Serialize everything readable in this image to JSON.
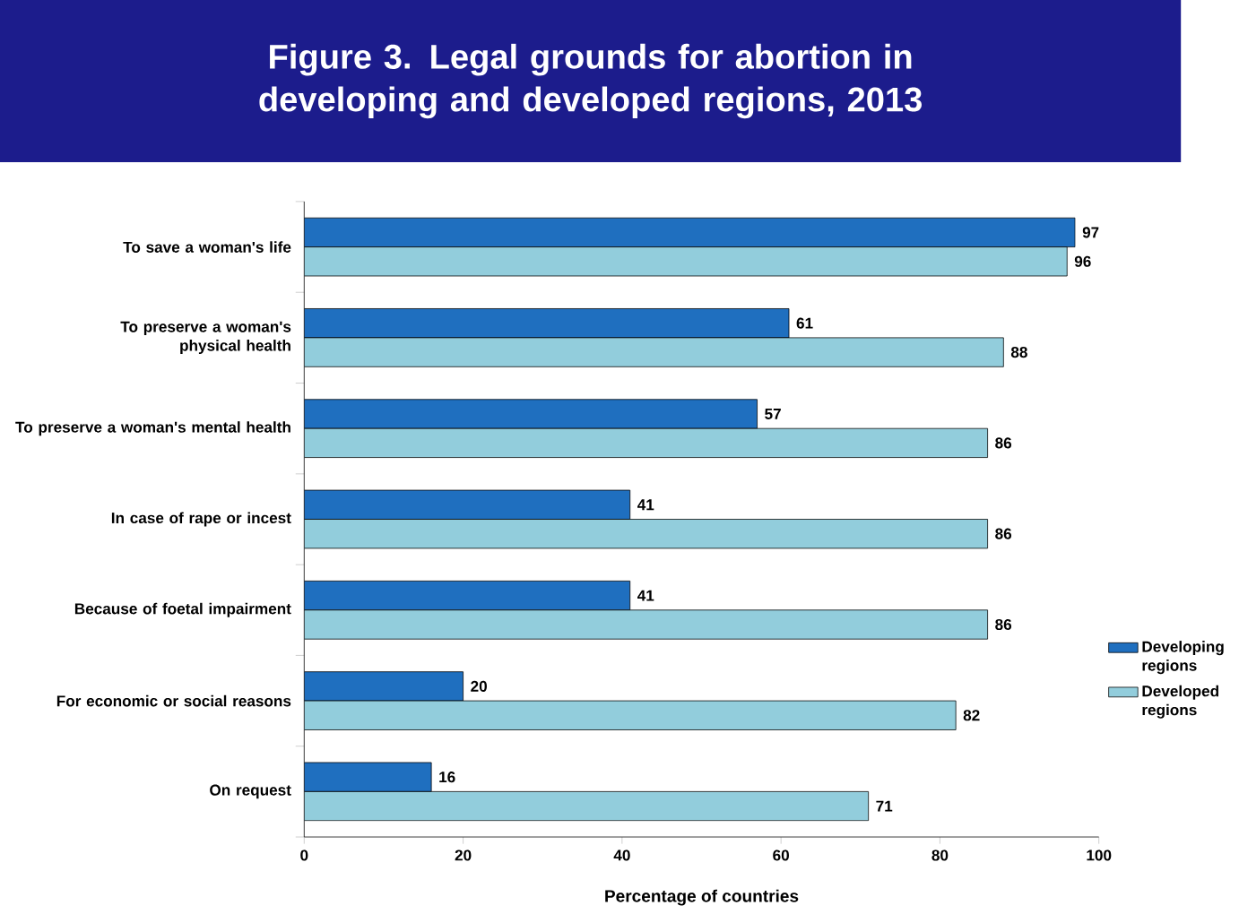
{
  "chart_data": {
    "type": "bar",
    "orientation": "horizontal",
    "title": "Figure 3. Legal grounds for abortion in developing and developed regions, 2013",
    "xlabel": "Percentage of countries",
    "categories": [
      "To save a woman's life",
      "To preserve a woman's physical health",
      "To preserve a woman's mental health",
      "In case of rape or incest",
      "Because of foetal impairment",
      "For economic or social reasons",
      "On request"
    ],
    "series": [
      {
        "name": "Developing regions",
        "color": "#1f6fbf",
        "values": [
          97,
          61,
          57,
          41,
          41,
          20,
          16
        ]
      },
      {
        "name": "Developed regions",
        "color": "#92cddc",
        "values": [
          96,
          88,
          86,
          86,
          86,
          82,
          71
        ]
      }
    ],
    "xlim": [
      0,
      100
    ],
    "xticks": [
      0,
      20,
      40,
      60,
      80,
      100
    ],
    "data_labels": true,
    "legend": "right",
    "grid": false
  }
}
